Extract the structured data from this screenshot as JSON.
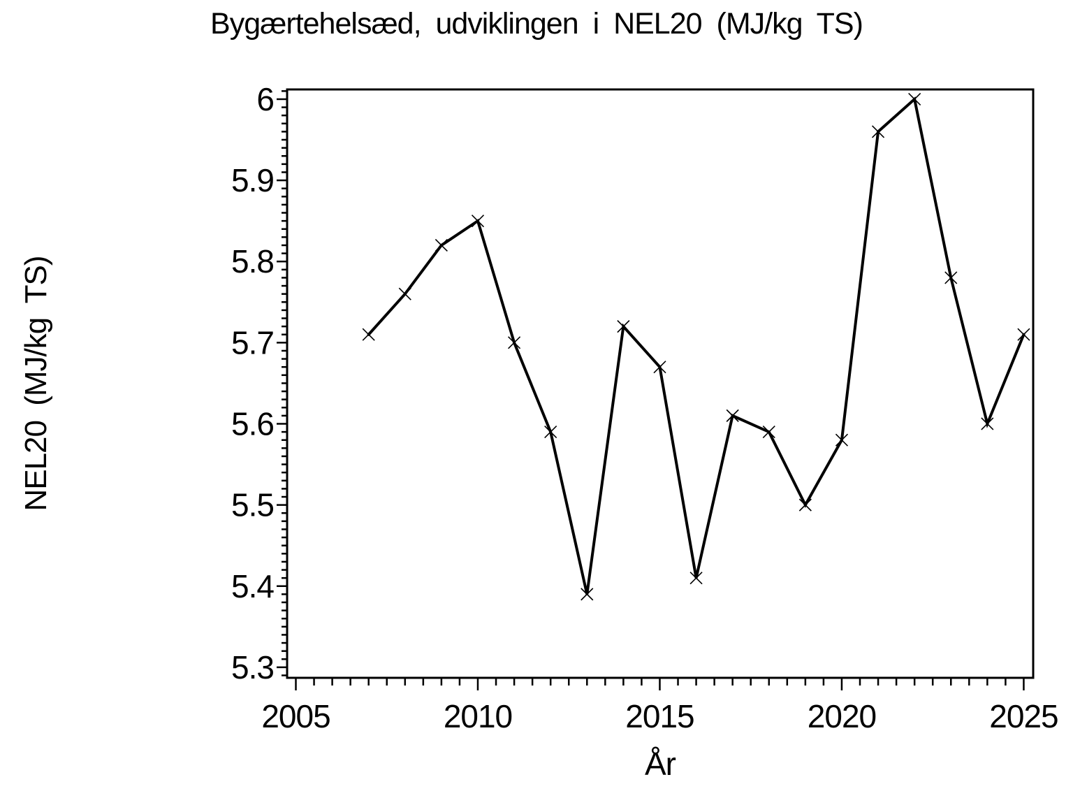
{
  "page": {
    "background_color": "#ffffff",
    "foreground_color": "#000000"
  },
  "chart_data": {
    "type": "line",
    "title": "Bygærtehelsæd, udviklingen i NEL20 (MJ/kg TS)",
    "xlabel": "År",
    "ylabel": "NEL20 (MJ/kg TS)",
    "series": [
      {
        "name": "NEL20",
        "x": [
          2007,
          2008,
          2009,
          2010,
          2011,
          2012,
          2013,
          2014,
          2015,
          2016,
          2017,
          2018,
          2019,
          2020,
          2021,
          2022,
          2023,
          2024,
          2025
        ],
        "values": [
          5.71,
          5.76,
          5.82,
          5.85,
          5.7,
          5.59,
          5.39,
          5.72,
          5.67,
          5.41,
          5.61,
          5.59,
          5.5,
          5.58,
          5.96,
          6.0,
          5.78,
          5.6,
          5.71
        ],
        "marker": "x",
        "color": "#000000"
      }
    ],
    "x_axis": {
      "range": [
        2004.76,
        2025.26
      ],
      "major_ticks": [
        2005,
        2010,
        2015,
        2020,
        2025
      ],
      "major_tick_labels": [
        "2005",
        "2010",
        "2015",
        "2020",
        "2025"
      ],
      "minor_tick_step": 0.5
    },
    "y_axis": {
      "range": [
        5.287,
        6.012
      ],
      "major_ticks": [
        5.3,
        5.4,
        5.5,
        5.6,
        5.7,
        5.8,
        5.9,
        6.0
      ],
      "major_tick_labels": [
        "5.3",
        "5.4",
        "5.5",
        "5.6",
        "5.7",
        "5.8",
        "5.9",
        "6"
      ],
      "minor_tick_step": 0.01
    },
    "grid": false,
    "legend": null,
    "frame": true
  }
}
